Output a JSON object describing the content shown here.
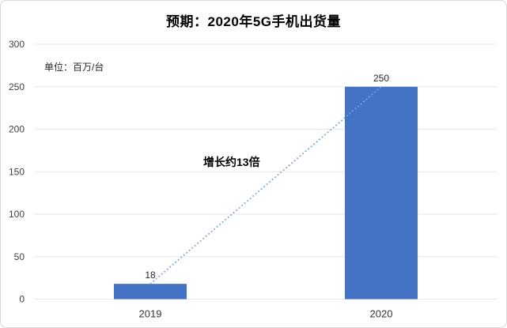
{
  "chart_data": {
    "type": "bar",
    "title": "预期：2020年5G手机出货量",
    "unit": "单位：百万/台",
    "annotation": "增长约13倍",
    "categories": [
      "2019",
      "2020"
    ],
    "values": [
      18,
      250
    ],
    "data_labels": [
      "18",
      "250"
    ],
    "ylim": [
      0,
      300
    ],
    "yticks": [
      0,
      50,
      100,
      150,
      200,
      250,
      300
    ],
    "grid": true,
    "legend": "none",
    "bar_color": "#4472C4",
    "trend_color": "#7DA4E2",
    "grid_color": "#E6E6E6",
    "tick_label_color": "#404040",
    "data_label_color": "#262626",
    "trendline": {
      "style": "dotted",
      "from": "top of 2019 bar",
      "to": "top of 2020 bar"
    }
  }
}
